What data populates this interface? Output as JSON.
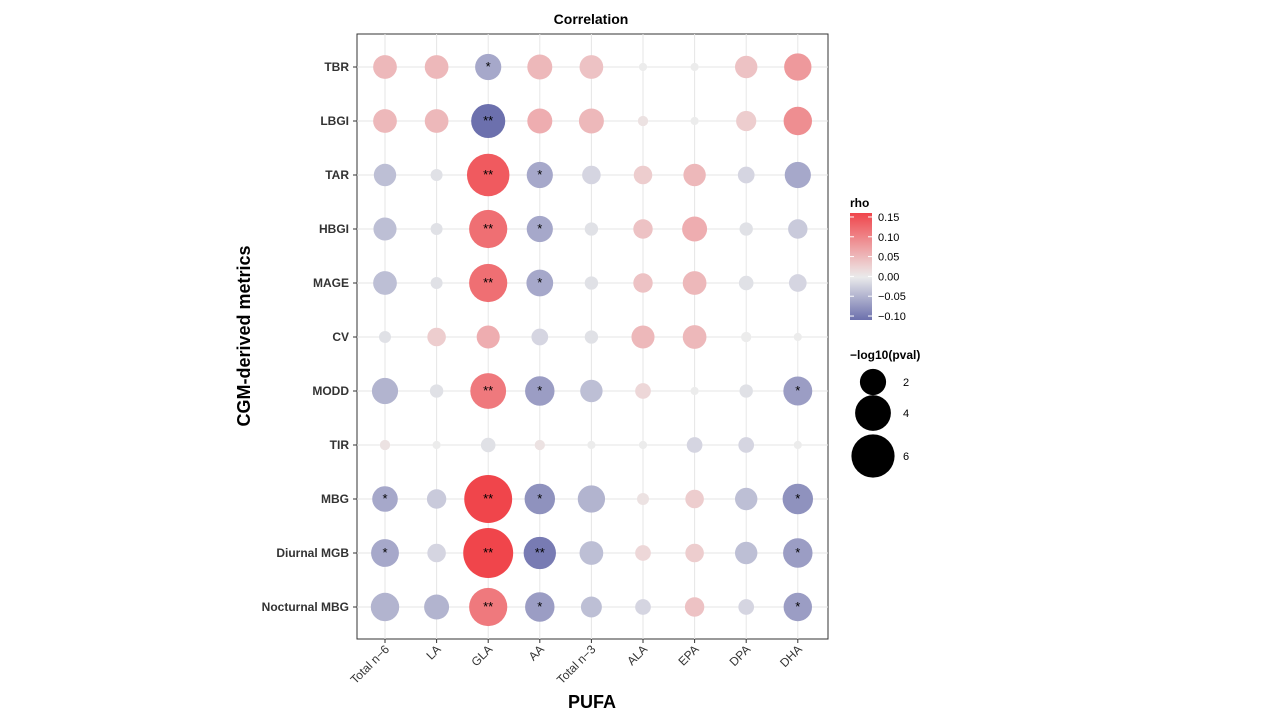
{
  "chart_data": {
    "type": "bubble-heatmap",
    "title": "Correlation",
    "xlabel": "PUFA",
    "ylabel": "CGM-derived metrics",
    "x_categories": [
      "Total n−6",
      "LA",
      "GLA",
      "AA",
      "Total n−3",
      "ALA",
      "EPA",
      "DPA",
      "DHA"
    ],
    "y_categories": [
      "TBR",
      "LBGI",
      "TAR",
      "HBGI",
      "MAGE",
      "CV",
      "MODD",
      "TIR",
      "MBG",
      "Diurnal MGB",
      "Nocturnal MBG"
    ],
    "rho": [
      [
        0.05,
        0.05,
        -0.06,
        0.05,
        0.04,
        0.0,
        0.0,
        0.04,
        0.08
      ],
      [
        0.05,
        0.05,
        -0.11,
        0.06,
        0.05,
        0.01,
        0.0,
        0.03,
        0.09
      ],
      [
        -0.04,
        -0.01,
        0.14,
        -0.06,
        -0.02,
        0.03,
        0.05,
        -0.02,
        -0.06
      ],
      [
        -0.04,
        -0.01,
        0.12,
        -0.06,
        -0.01,
        0.04,
        0.06,
        -0.01,
        -0.03
      ],
      [
        -0.04,
        -0.01,
        0.12,
        -0.06,
        -0.01,
        0.04,
        0.05,
        -0.01,
        -0.02
      ],
      [
        -0.01,
        0.03,
        0.06,
        -0.02,
        -0.01,
        0.05,
        0.05,
        0.0,
        0.0
      ],
      [
        -0.05,
        -0.01,
        0.11,
        -0.07,
        -0.04,
        0.02,
        0.0,
        -0.01,
        -0.07
      ],
      [
        0.01,
        0.0,
        -0.01,
        0.01,
        0.0,
        0.0,
        -0.02,
        -0.02,
        0.0
      ],
      [
        -0.06,
        -0.03,
        0.16,
        -0.08,
        -0.05,
        0.01,
        0.03,
        -0.04,
        -0.08
      ],
      [
        -0.06,
        -0.02,
        0.16,
        -0.1,
        -0.04,
        0.02,
        0.03,
        -0.04,
        -0.07
      ],
      [
        -0.05,
        -0.05,
        0.11,
        -0.07,
        -0.04,
        -0.02,
        0.04,
        -0.02,
        -0.07
      ]
    ],
    "neglog10_pval": [
      [
        1.6,
        1.6,
        2.0,
        1.8,
        1.6,
        0.1,
        0.1,
        1.4,
        2.2
      ],
      [
        1.6,
        1.6,
        3.6,
        1.8,
        1.8,
        0.2,
        0.1,
        1.1,
        2.4
      ],
      [
        1.4,
        0.3,
        5.8,
        2.0,
        0.9,
        0.9,
        1.4,
        0.7,
        2.0
      ],
      [
        1.5,
        0.3,
        4.6,
        2.0,
        0.4,
        1.0,
        1.8,
        0.4,
        1.0
      ],
      [
        1.6,
        0.3,
        4.6,
        2.1,
        0.4,
        1.0,
        1.6,
        0.5,
        0.8
      ],
      [
        0.3,
        0.9,
        1.5,
        0.7,
        0.4,
        1.5,
        1.6,
        0.2,
        0.1
      ],
      [
        2.0,
        0.4,
        4.0,
        2.6,
        1.4,
        0.6,
        0.1,
        0.4,
        2.5
      ],
      [
        0.2,
        0.1,
        0.5,
        0.2,
        0.1,
        0.1,
        0.6,
        0.6,
        0.1
      ],
      [
        1.9,
        1.0,
        7.5,
        2.8,
        2.2,
        0.3,
        0.9,
        1.4,
        2.8
      ],
      [
        2.3,
        0.9,
        8.2,
        3.2,
        1.6,
        0.6,
        0.9,
        1.4,
        2.6
      ],
      [
        2.4,
        1.8,
        4.6,
        2.6,
        1.2,
        0.6,
        1.0,
        0.6,
        2.4
      ]
    ],
    "significance": [
      [
        "",
        "",
        "*",
        "",
        "",
        "",
        "",
        "",
        ""
      ],
      [
        "",
        "",
        "**",
        "",
        "",
        "",
        "",
        "",
        ""
      ],
      [
        "",
        "",
        "**",
        "*",
        "",
        "",
        "",
        "",
        ""
      ],
      [
        "",
        "",
        "**",
        "*",
        "",
        "",
        "",
        "",
        ""
      ],
      [
        "",
        "",
        "**",
        "*",
        "",
        "",
        "",
        "",
        ""
      ],
      [
        "",
        "",
        "",
        "",
        "",
        "",
        "",
        "",
        ""
      ],
      [
        "",
        "",
        "**",
        "*",
        "",
        "",
        "",
        "",
        "*"
      ],
      [
        "",
        "",
        "",
        "",
        "",
        "",
        "",
        "",
        ""
      ],
      [
        "*",
        "",
        "**",
        "*",
        "",
        "",
        "",
        "",
        "*"
      ],
      [
        "*",
        "",
        "**",
        "**",
        "",
        "",
        "",
        "",
        "*"
      ],
      [
        "",
        "",
        "**",
        "*",
        "",
        "",
        "",
        "",
        "*"
      ]
    ],
    "legend": {
      "color_title": "rho",
      "color_ticks": [
        0.15,
        0.1,
        0.05,
        0.0,
        -0.05,
        -0.1
      ],
      "color_tick_labels": [
        "0.15",
        "0.10",
        "0.05",
        "0.00",
        "−0.05",
        "−0.10"
      ],
      "color_range": [
        -0.11,
        0.16
      ],
      "size_title": "−log10(pval)",
      "size_values": [
        2,
        4,
        6
      ],
      "size_labels": [
        "2",
        "4",
        "6"
      ],
      "position": "right"
    },
    "colors": {
      "high": "#f0454b",
      "mid": "#ececec",
      "low": "#6c70ad"
    },
    "grid": true
  }
}
